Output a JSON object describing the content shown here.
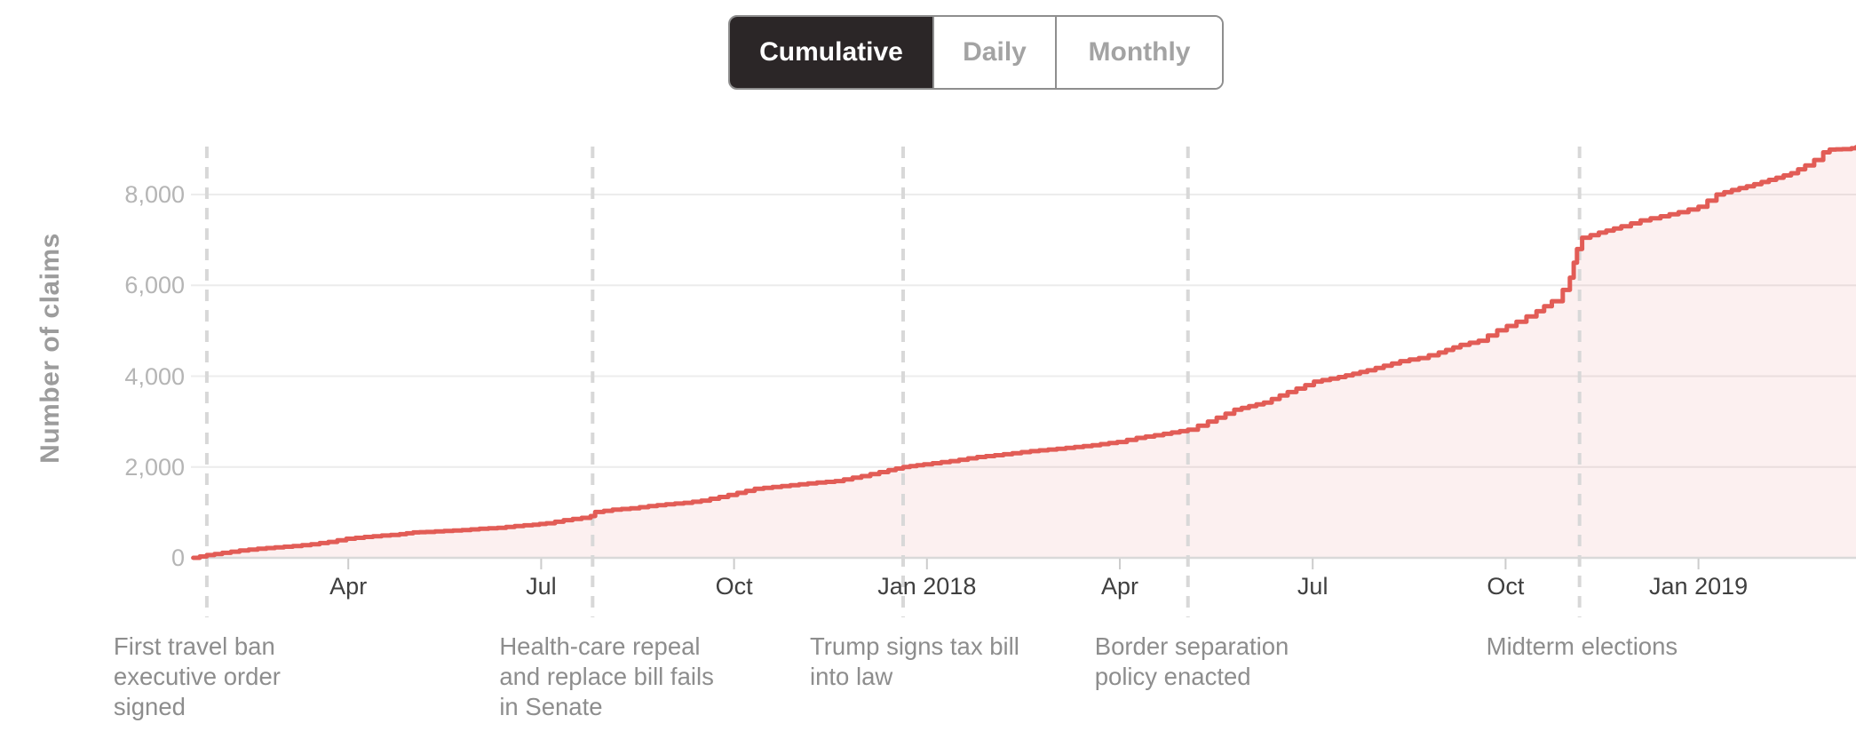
{
  "view_toggle": {
    "options": [
      {
        "label": "Cumulative",
        "active": true
      },
      {
        "label": "Daily",
        "active": false
      },
      {
        "label": "Monthly",
        "active": false
      }
    ]
  },
  "colors": {
    "line": "#e25c56",
    "area_fill": "rgba(226,92,86,0.09)",
    "event_dash": "#d8d8d8",
    "grid": "#ececec",
    "axis_baseline": "#d9d9d9",
    "tick_mark": "#cccccc",
    "x_tick_text": "#3f3f3f",
    "y_tick_text": "#b5b5b5",
    "axis_title_text": "#9c9c9c",
    "event_text": "#8d8d8d",
    "button_active_bg": "#2b2627",
    "button_active_text": "#ffffff",
    "button_inactive_text": "#a3a3a3",
    "button_border": "#8e8e8e"
  },
  "chart_data": {
    "type": "area",
    "title": "",
    "xlabel": "",
    "ylabel": "Number of claims",
    "grid": "horizontal",
    "legend": "none",
    "ylim": [
      0,
      9100
    ],
    "x_domain_months_since_jan2017": [
      0,
      26.45
    ],
    "yticks": [
      {
        "value": 0,
        "label": "0"
      },
      {
        "value": 2000,
        "label": "2,000"
      },
      {
        "value": 4000,
        "label": "4,000"
      },
      {
        "value": 6000,
        "label": "6,000"
      },
      {
        "value": 8000,
        "label": "8,000"
      }
    ],
    "xticks": [
      {
        "month": 3,
        "label": "Apr"
      },
      {
        "month": 6,
        "label": "Jul"
      },
      {
        "month": 9,
        "label": "Oct"
      },
      {
        "month": 12,
        "label": "Jan 2018"
      },
      {
        "month": 15,
        "label": "Apr"
      },
      {
        "month": 18,
        "label": "Jul"
      },
      {
        "month": 21,
        "label": "Oct"
      },
      {
        "month": 24,
        "label": "Jan 2019"
      }
    ],
    "events": [
      {
        "month": 0.8,
        "label": "First travel ban executive order signed",
        "lines": [
          "First travel ban",
          "executive order",
          "signed"
        ]
      },
      {
        "month": 6.8,
        "label": "Health-care repeal and replace bill fails in Senate",
        "lines": [
          "Health-care repeal",
          "and replace bill fails",
          "in Senate"
        ]
      },
      {
        "month": 11.63,
        "label": "Trump signs tax bill into law",
        "lines": [
          "Trump signs tax bill",
          "into law"
        ]
      },
      {
        "month": 16.06,
        "label": "Border separation policy enacted",
        "lines": [
          "Border separation",
          "policy enacted"
        ]
      },
      {
        "month": 22.15,
        "label": "Midterm elections",
        "lines": [
          "Midterm elections"
        ]
      }
    ],
    "series": [
      {
        "units": "claims",
        "points": [
          [
            0.59,
            0
          ],
          [
            0.69,
            30
          ],
          [
            0.8,
            60
          ],
          [
            1.04,
            110
          ],
          [
            1.31,
            160
          ],
          [
            1.59,
            200
          ],
          [
            1.86,
            230
          ],
          [
            2.14,
            260
          ],
          [
            2.42,
            300
          ],
          [
            2.69,
            350
          ],
          [
            2.97,
            420
          ],
          [
            3.25,
            460
          ],
          [
            3.52,
            490
          ],
          [
            3.8,
            520
          ],
          [
            4.01,
            560
          ],
          [
            4.21,
            570
          ],
          [
            4.49,
            590
          ],
          [
            4.77,
            610
          ],
          [
            5.04,
            640
          ],
          [
            5.32,
            660
          ],
          [
            5.59,
            700
          ],
          [
            5.87,
            730
          ],
          [
            6.08,
            760
          ],
          [
            6.35,
            830
          ],
          [
            6.63,
            880
          ],
          [
            6.77,
            920
          ],
          [
            6.84,
            1010
          ],
          [
            7.11,
            1060
          ],
          [
            7.39,
            1090
          ],
          [
            7.67,
            1140
          ],
          [
            7.94,
            1180
          ],
          [
            8.22,
            1210
          ],
          [
            8.49,
            1260
          ],
          [
            8.77,
            1340
          ],
          [
            9.05,
            1430
          ],
          [
            9.32,
            1520
          ],
          [
            9.74,
            1580
          ],
          [
            10.15,
            1640
          ],
          [
            10.57,
            1690
          ],
          [
            10.98,
            1800
          ],
          [
            11.4,
            1930
          ],
          [
            11.63,
            2000
          ],
          [
            11.95,
            2060
          ],
          [
            12.36,
            2130
          ],
          [
            12.78,
            2220
          ],
          [
            13.19,
            2280
          ],
          [
            13.61,
            2350
          ],
          [
            14.16,
            2420
          ],
          [
            14.57,
            2480
          ],
          [
            14.96,
            2550
          ],
          [
            15.26,
            2640
          ],
          [
            15.68,
            2730
          ],
          [
            16.06,
            2820
          ],
          [
            16.37,
            3000
          ],
          [
            16.78,
            3260
          ],
          [
            17.24,
            3420
          ],
          [
            17.61,
            3650
          ],
          [
            18.02,
            3880
          ],
          [
            18.4,
            3980
          ],
          [
            18.85,
            4130
          ],
          [
            19.36,
            4330
          ],
          [
            19.65,
            4400
          ],
          [
            19.96,
            4520
          ],
          [
            20.3,
            4690
          ],
          [
            20.58,
            4780
          ],
          [
            20.87,
            5010
          ],
          [
            21.17,
            5200
          ],
          [
            21.48,
            5430
          ],
          [
            21.72,
            5650
          ],
          [
            21.89,
            5900
          ],
          [
            22.0,
            6170
          ],
          [
            22.06,
            6500
          ],
          [
            22.11,
            6800
          ],
          [
            22.19,
            7050
          ],
          [
            22.45,
            7160
          ],
          [
            22.8,
            7300
          ],
          [
            23.1,
            7430
          ],
          [
            23.41,
            7520
          ],
          [
            23.69,
            7610
          ],
          [
            24.0,
            7730
          ],
          [
            24.28,
            8000
          ],
          [
            24.52,
            8100
          ],
          [
            24.75,
            8180
          ],
          [
            25.21,
            8370
          ],
          [
            25.44,
            8470
          ],
          [
            25.66,
            8640
          ],
          [
            25.8,
            8760
          ],
          [
            25.94,
            8930
          ],
          [
            26.04,
            8990
          ],
          [
            26.24,
            9000
          ],
          [
            26.38,
            9020
          ],
          [
            26.45,
            9040
          ]
        ]
      }
    ]
  }
}
